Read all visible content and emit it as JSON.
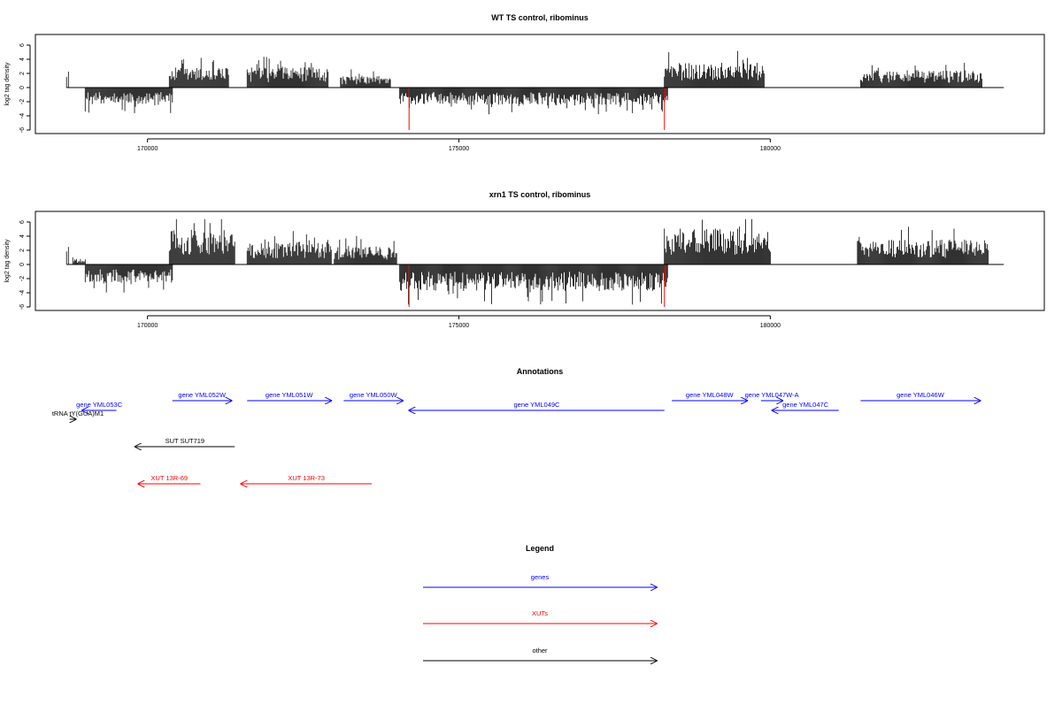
{
  "colors": {
    "gene": "#0000ff",
    "xut": "#ff0000",
    "other": "#000000",
    "marker": "#ff0000",
    "signal": "#000000",
    "axis": "#000000"
  },
  "chart_data": [
    {
      "type": "bar",
      "title": "WT TS control, ribominus",
      "ylabel": "log2 tag density",
      "xlim": [
        168200,
        184400
      ],
      "ylim": [
        -6.5,
        7.5
      ],
      "x_ticks": [
        170000,
        175000,
        180000
      ],
      "y_ticks": [
        -6,
        -4,
        -2,
        0,
        2,
        4,
        6
      ],
      "markers_x": [
        174200,
        178300
      ],
      "regions": [
        {
          "from": 168700,
          "to": 168730,
          "strand": 1,
          "level": 2.6
        },
        {
          "from": 169000,
          "to": 170400,
          "strand": -1,
          "level": 1.8
        },
        {
          "from": 170350,
          "to": 171300,
          "strand": 1,
          "level": 2.2
        },
        {
          "from": 171600,
          "to": 172900,
          "strand": 1,
          "level": 2.2
        },
        {
          "from": 173100,
          "to": 173900,
          "strand": 1,
          "level": 1.3
        },
        {
          "from": 174050,
          "to": 178350,
          "strand": -1,
          "level": 1.9
        },
        {
          "from": 178300,
          "to": 179900,
          "strand": 1,
          "level": 2.7
        },
        {
          "from": 181450,
          "to": 183400,
          "strand": 1,
          "level": 1.9
        }
      ]
    },
    {
      "type": "bar",
      "title": "xrn1 TS control, ribominus",
      "ylabel": "log2 tag density",
      "xlim": [
        168200,
        184400
      ],
      "ylim": [
        -6.5,
        7.5
      ],
      "x_ticks": [
        170000,
        175000,
        180000
      ],
      "y_ticks": [
        -6,
        -4,
        -2,
        0,
        2,
        4,
        6
      ],
      "markers_x": [
        174200,
        178300
      ],
      "regions": [
        {
          "from": 168700,
          "to": 168730,
          "strand": 1,
          "level": 2.8
        },
        {
          "from": 168800,
          "to": 169000,
          "strand": 1,
          "level": 0.6
        },
        {
          "from": 169000,
          "to": 170400,
          "strand": -1,
          "level": 2.0
        },
        {
          "from": 170350,
          "to": 171400,
          "strand": 1,
          "level": 3.8
        },
        {
          "from": 171600,
          "to": 172950,
          "strand": 1,
          "level": 2.5
        },
        {
          "from": 173000,
          "to": 174000,
          "strand": 1,
          "level": 2.0
        },
        {
          "from": 174050,
          "to": 178350,
          "strand": -1,
          "level": 2.9
        },
        {
          "from": 178300,
          "to": 180000,
          "strand": 1,
          "level": 3.9
        },
        {
          "from": 181400,
          "to": 183500,
          "strand": 1,
          "level": 2.7
        }
      ]
    }
  ],
  "annotations": {
    "title": "Annotations",
    "features": [
      {
        "label": "gene YML053C",
        "type": "gene",
        "from": 169500,
        "to": 168950,
        "row": 1
      },
      {
        "label": "tRNA tY(GUA)M1",
        "type": "other",
        "from": 168750,
        "to": 168850,
        "row": 2
      },
      {
        "label": "gene YML052W",
        "type": "gene",
        "from": 170400,
        "to": 171350,
        "row": 0
      },
      {
        "label": "gene YML051W",
        "type": "gene",
        "from": 171600,
        "to": 172950,
        "row": 0
      },
      {
        "label": "gene YML050W",
        "type": "gene",
        "from": 173150,
        "to": 174100,
        "row": 0
      },
      {
        "label": "gene YML049C",
        "type": "gene",
        "from": 178300,
        "to": 174200,
        "row": 1
      },
      {
        "label": "gene YML048W",
        "type": "gene",
        "from": 178420,
        "to": 179630,
        "row": 0
      },
      {
        "label": "gene YML047W-A",
        "type": "gene",
        "from": 179850,
        "to": 180200,
        "row": 0
      },
      {
        "label": "gene YML047C",
        "type": "gene",
        "from": 181100,
        "to": 180030,
        "row": 1
      },
      {
        "label": "gene YML046W",
        "type": "gene",
        "from": 181450,
        "to": 183370,
        "row": 0
      },
      {
        "label": "SUT SUT719",
        "type": "other",
        "from": 171400,
        "to": 169800,
        "row": 3
      },
      {
        "label": "XUT 13R-69",
        "type": "xut",
        "from": 170850,
        "to": 169850,
        "row": 4
      },
      {
        "label": "XUT 13R-73",
        "type": "xut",
        "from": 173600,
        "to": 171500,
        "row": 4
      }
    ]
  },
  "legend": {
    "title": "Legend",
    "items": [
      {
        "label": "genes",
        "type": "gene"
      },
      {
        "label": "XUTs",
        "type": "xut"
      },
      {
        "label": "other",
        "type": "other"
      }
    ]
  }
}
